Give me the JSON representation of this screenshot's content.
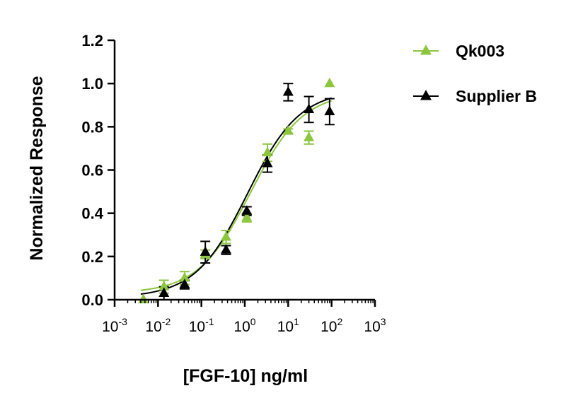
{
  "chart_data": {
    "type": "scatter",
    "title": "",
    "xlabel": "[FGF-10] ng/ml",
    "ylabel": "Normalized Response",
    "x_scale": "log10",
    "xlim": [
      0.001,
      1000
    ],
    "ylim": [
      0.0,
      1.2
    ],
    "x_ticks": [
      {
        "value": 0.001,
        "base": "10",
        "exp": "-3"
      },
      {
        "value": 0.01,
        "base": "10",
        "exp": "-2"
      },
      {
        "value": 0.1,
        "base": "10",
        "exp": "-1"
      },
      {
        "value": 1,
        "base": "10",
        "exp": "0"
      },
      {
        "value": 10,
        "base": "10",
        "exp": "1"
      },
      {
        "value": 100,
        "base": "10",
        "exp": "2"
      },
      {
        "value": 1000,
        "base": "10",
        "exp": "3"
      }
    ],
    "y_ticks": [
      {
        "value": 0.0,
        "label": "0.0"
      },
      {
        "value": 0.2,
        "label": "0.2"
      },
      {
        "value": 0.4,
        "label": "0.4"
      },
      {
        "value": 0.6,
        "label": "0.6"
      },
      {
        "value": 0.8,
        "label": "0.8"
      },
      {
        "value": 1.0,
        "label": "1.0"
      },
      {
        "value": 1.2,
        "label": "1.2"
      }
    ],
    "grid": false,
    "legend_position": "top-right, outside plot",
    "series": [
      {
        "name": "Qk003",
        "color": "#8CC63F",
        "marker": "triangle",
        "points": [
          {
            "x": 0.0046,
            "y": 0.0,
            "err": 0.0
          },
          {
            "x": 0.0137,
            "y": 0.06,
            "err": 0.03
          },
          {
            "x": 0.041,
            "y": 0.1,
            "err": 0.03
          },
          {
            "x": 0.123,
            "y": 0.21,
            "err": 0.02
          },
          {
            "x": 0.37,
            "y": 0.29,
            "err": 0.03
          },
          {
            "x": 1.11,
            "y": 0.38,
            "err": 0.02
          },
          {
            "x": 3.33,
            "y": 0.68,
            "err": 0.04
          },
          {
            "x": 10.0,
            "y": 0.78,
            "err": 0.01
          },
          {
            "x": 30.0,
            "y": 0.75,
            "err": 0.03
          },
          {
            "x": 90.0,
            "y": 1.0,
            "err": 0.0
          }
        ],
        "fit": {
          "bottom": 0.03,
          "top": 0.96,
          "ec50": 1.35,
          "hill": 0.72
        }
      },
      {
        "name": "Supplier B",
        "color": "#000000",
        "marker": "triangle",
        "points": [
          {
            "x": 0.0137,
            "y": 0.03,
            "err": 0.03
          },
          {
            "x": 0.041,
            "y": 0.07,
            "err": 0.02
          },
          {
            "x": 0.123,
            "y": 0.22,
            "err": 0.05
          },
          {
            "x": 0.37,
            "y": 0.23,
            "err": 0.02
          },
          {
            "x": 1.11,
            "y": 0.41,
            "err": 0.02
          },
          {
            "x": 3.33,
            "y": 0.63,
            "err": 0.04
          },
          {
            "x": 10.0,
            "y": 0.96,
            "err": 0.04
          },
          {
            "x": 30.0,
            "y": 0.88,
            "err": 0.06
          },
          {
            "x": 90.0,
            "y": 0.87,
            "err": 0.06
          }
        ],
        "fit": {
          "bottom": 0.01,
          "top": 0.97,
          "ec50": 1.15,
          "hill": 0.72
        }
      }
    ]
  }
}
